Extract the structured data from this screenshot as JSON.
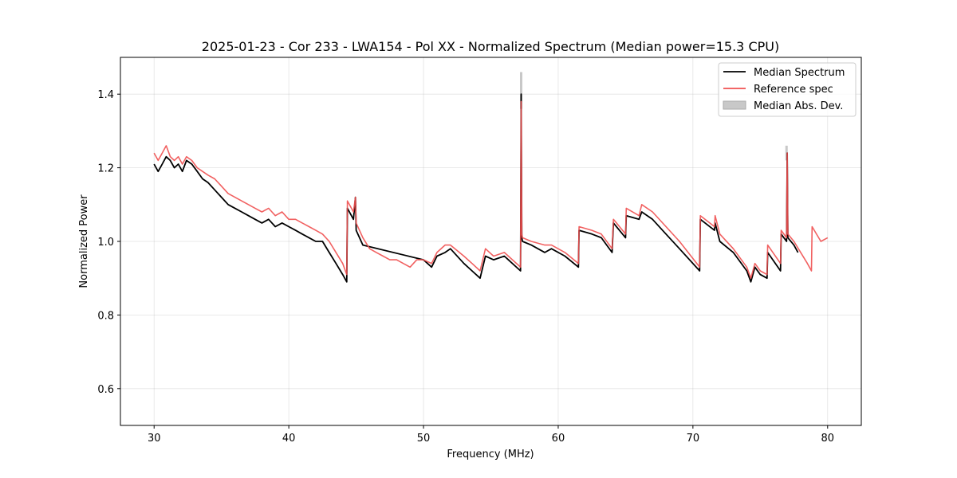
{
  "chart_data": {
    "type": "line",
    "title": "2025-01-23 - Cor 233 - LWA154 - Pol XX - Normalized Spectrum (Median power=15.3 CPU)",
    "xlabel": "Frequency (MHz)",
    "ylabel": "Normalized Power",
    "xlim": [
      27.5,
      82.5
    ],
    "ylim": [
      0.5,
      1.5
    ],
    "xticks": [
      30,
      40,
      50,
      60,
      70,
      80
    ],
    "yticks": [
      0.6,
      0.8,
      1.0,
      1.2,
      1.4
    ],
    "xtick_labels": [
      "30",
      "40",
      "50",
      "60",
      "70",
      "80"
    ],
    "ytick_labels": [
      "0.6",
      "0.8",
      "1.0",
      "1.2",
      "1.4"
    ],
    "grid": true,
    "legend_position": "top-right",
    "legend": [
      "Median Spectrum",
      "Reference spec",
      "Median Abs. Dev."
    ],
    "colors": {
      "median": "#000000",
      "reference": "#f05050",
      "mad": "#c8c8c8"
    },
    "series": [
      {
        "name": "Median Spectrum",
        "x": [
          30.0,
          30.3,
          30.6,
          30.9,
          31.2,
          31.5,
          31.8,
          32.1,
          32.4,
          32.8,
          33.2,
          33.6,
          34.0,
          34.5,
          35.0,
          35.5,
          36.0,
          36.5,
          37.0,
          37.5,
          38.0,
          38.5,
          39.0,
          39.5,
          40.0,
          40.5,
          41.0,
          41.5,
          42.0,
          42.5,
          43.0,
          43.5,
          44.0,
          44.3,
          44.35,
          44.8,
          44.95,
          45.0,
          45.5,
          50.0,
          50.6,
          51.0,
          51.6,
          52.0,
          53.0,
          53.6,
          54.2,
          54.6,
          55.2,
          56.0,
          57.2,
          57.25,
          57.3,
          57.35,
          58.0,
          59.0,
          59.5,
          60.5,
          61.5,
          61.55,
          62.5,
          63.2,
          64.0,
          64.1,
          65.0,
          65.05,
          66.0,
          66.2,
          67.0,
          68.0,
          69.0,
          70.5,
          70.55,
          71.6,
          71.65,
          72.0,
          73.0,
          74.0,
          74.3,
          74.6,
          75.0,
          75.5,
          75.55,
          76.5,
          76.55,
          76.95,
          77.0,
          77.05,
          77.5,
          77.8
        ],
        "y": [
          1.21,
          1.19,
          1.21,
          1.23,
          1.22,
          1.2,
          1.21,
          1.19,
          1.22,
          1.21,
          1.19,
          1.17,
          1.16,
          1.14,
          1.12,
          1.1,
          1.09,
          1.08,
          1.07,
          1.06,
          1.05,
          1.06,
          1.04,
          1.05,
          1.04,
          1.03,
          1.02,
          1.01,
          1.0,
          1.0,
          0.97,
          0.94,
          0.91,
          0.89,
          1.09,
          1.06,
          1.12,
          1.03,
          0.99,
          0.95,
          0.93,
          0.96,
          0.97,
          0.98,
          0.94,
          0.92,
          0.9,
          0.96,
          0.95,
          0.96,
          0.92,
          1.4,
          1.01,
          1.0,
          0.99,
          0.97,
          0.98,
          0.96,
          0.93,
          1.03,
          1.02,
          1.01,
          0.97,
          1.05,
          1.01,
          1.07,
          1.06,
          1.08,
          1.06,
          1.02,
          0.98,
          0.92,
          1.06,
          1.03,
          1.05,
          1.0,
          0.97,
          0.92,
          0.89,
          0.93,
          0.91,
          0.9,
          0.97,
          0.92,
          1.02,
          1.0,
          1.24,
          1.01,
          0.99,
          0.97
        ]
      },
      {
        "name": "Reference spec",
        "x": [
          30.0,
          30.3,
          30.6,
          30.9,
          31.2,
          31.5,
          31.8,
          32.1,
          32.4,
          32.8,
          33.2,
          33.6,
          34.0,
          34.5,
          35.0,
          35.5,
          36.0,
          36.5,
          37.0,
          37.5,
          38.0,
          38.5,
          39.0,
          39.5,
          40.0,
          40.5,
          41.0,
          41.5,
          42.0,
          42.5,
          43.0,
          43.5,
          44.0,
          44.3,
          44.35,
          44.8,
          44.95,
          45.0,
          45.5,
          46.0,
          46.5,
          47.0,
          47.5,
          48.0,
          48.5,
          49.0,
          49.5,
          50.0,
          50.6,
          51.0,
          51.6,
          52.0,
          53.0,
          53.6,
          54.2,
          54.6,
          55.2,
          56.0,
          57.2,
          57.25,
          57.3,
          57.35,
          58.0,
          59.0,
          59.5,
          60.5,
          61.5,
          61.55,
          62.5,
          63.2,
          64.0,
          64.1,
          65.0,
          65.05,
          66.0,
          66.2,
          67.0,
          68.0,
          69.0,
          70.5,
          70.55,
          71.6,
          71.65,
          72.0,
          73.0,
          74.0,
          74.3,
          74.6,
          75.0,
          75.5,
          75.55,
          76.5,
          76.55,
          76.95,
          77.0,
          77.05,
          77.5,
          78.0,
          78.5,
          78.8,
          78.85,
          79.5,
          80.0
        ],
        "y": [
          1.24,
          1.22,
          1.24,
          1.26,
          1.23,
          1.22,
          1.23,
          1.21,
          1.23,
          1.22,
          1.2,
          1.19,
          1.18,
          1.17,
          1.15,
          1.13,
          1.12,
          1.11,
          1.1,
          1.09,
          1.08,
          1.09,
          1.07,
          1.08,
          1.06,
          1.06,
          1.05,
          1.04,
          1.03,
          1.02,
          1.0,
          0.97,
          0.94,
          0.91,
          1.11,
          1.08,
          1.12,
          1.05,
          1.01,
          0.98,
          0.97,
          0.96,
          0.95,
          0.95,
          0.94,
          0.93,
          0.95,
          0.95,
          0.94,
          0.97,
          0.99,
          0.99,
          0.96,
          0.94,
          0.92,
          0.98,
          0.96,
          0.97,
          0.93,
          1.38,
          1.02,
          1.01,
          1.0,
          0.99,
          0.99,
          0.97,
          0.94,
          1.04,
          1.03,
          1.02,
          0.98,
          1.06,
          1.02,
          1.09,
          1.07,
          1.1,
          1.08,
          1.04,
          1.0,
          0.93,
          1.07,
          1.04,
          1.07,
          1.02,
          0.98,
          0.93,
          0.9,
          0.94,
          0.92,
          0.91,
          0.99,
          0.94,
          1.03,
          1.01,
          1.24,
          1.02,
          1.0,
          0.97,
          0.94,
          0.92,
          1.04,
          1.0,
          1.01
        ]
      }
    ],
    "mad_band": [
      {
        "x": 57.25,
        "low": 1.36,
        "high": 1.46
      },
      {
        "x": 76.95,
        "low": 1.22,
        "high": 1.26
      }
    ]
  }
}
